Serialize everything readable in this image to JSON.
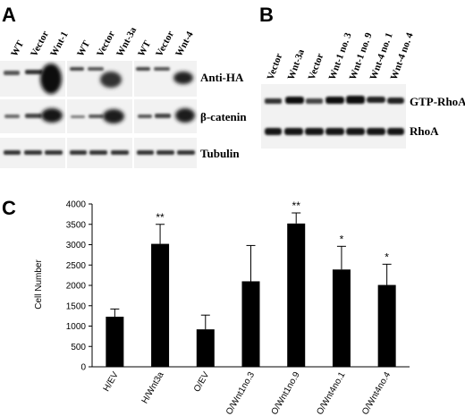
{
  "panels": {
    "a": {
      "letter": "A",
      "groups": [
        {
          "lanes": [
            "WT",
            "Vector",
            "Wnt-1"
          ]
        },
        {
          "lanes": [
            "WT",
            "Vector",
            "Wnt-3a"
          ]
        },
        {
          "lanes": [
            "WT",
            "Vector",
            "Wnt-4"
          ]
        }
      ],
      "rows": [
        "Anti-HA",
        "β-catenin",
        "Tubulin"
      ]
    },
    "b": {
      "letter": "B",
      "lanes": [
        "Vector",
        "Wnt-3a",
        "Vector",
        "Wnt-1 no. 3",
        "Wnt-1 no. 9",
        "Wnt-4 no. 1",
        "Wnt-4 no. 4"
      ],
      "rows": [
        "GTP-RhoA",
        "RhoA"
      ]
    },
    "c": {
      "letter": "C"
    }
  },
  "chart_data": {
    "type": "bar",
    "categories": [
      "H/EV",
      "H/Wnt3a",
      "O/EV",
      "O/Wnt1no.3",
      "O/Wnt1no.9",
      "O/Wnt4no.1",
      "O/Wnt4no.4"
    ],
    "values": [
      1230,
      3020,
      920,
      2100,
      3520,
      2390,
      2010
    ],
    "errors": [
      190,
      480,
      350,
      880,
      260,
      570,
      510
    ],
    "significance": [
      "",
      "**",
      "",
      "",
      "**",
      "*",
      "*"
    ],
    "ylabel": "Cell Number",
    "xlabel": "",
    "ylim": [
      0,
      4000
    ],
    "yticks": [
      0,
      500,
      1000,
      1500,
      2000,
      2500,
      3000,
      3500,
      4000
    ],
    "grid": false
  }
}
